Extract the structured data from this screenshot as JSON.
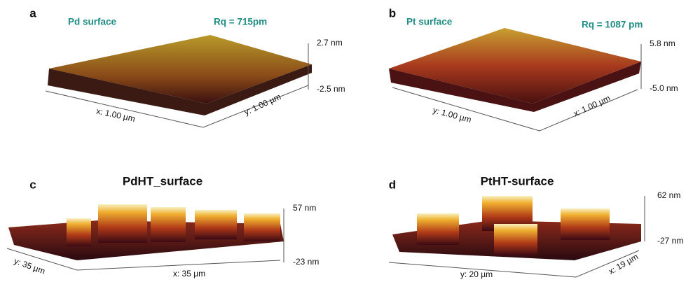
{
  "panels": [
    {
      "label": "a",
      "title": "Pd surface",
      "rq": "Rq = 715pm",
      "scale_top": "2.7 nm",
      "scale_bottom": "-2.5 nm",
      "axis_front": "x: 1.00 µm",
      "axis_side": "y: 1.00 µm"
    },
    {
      "label": "b",
      "title": "Pt surface",
      "rq": "Rq = 1087 pm",
      "scale_top": "5.8 nm",
      "scale_bottom": "-5.0 nm",
      "axis_front": "y: 1.00 µm",
      "axis_side": "x: 1.00 µm"
    },
    {
      "label": "c",
      "title": "PdHT_surface",
      "scale_top": "57 nm",
      "scale_bottom": "-23 nm",
      "axis_front": "y: 35 µm",
      "axis_side": "x: 35 µm"
    },
    {
      "label": "d",
      "title": "PtHT-surface",
      "scale_top": "62 nm",
      "scale_bottom": "-27 nm",
      "axis_front": "y: 20 µm",
      "axis_side": "x: 19 µm"
    }
  ]
}
